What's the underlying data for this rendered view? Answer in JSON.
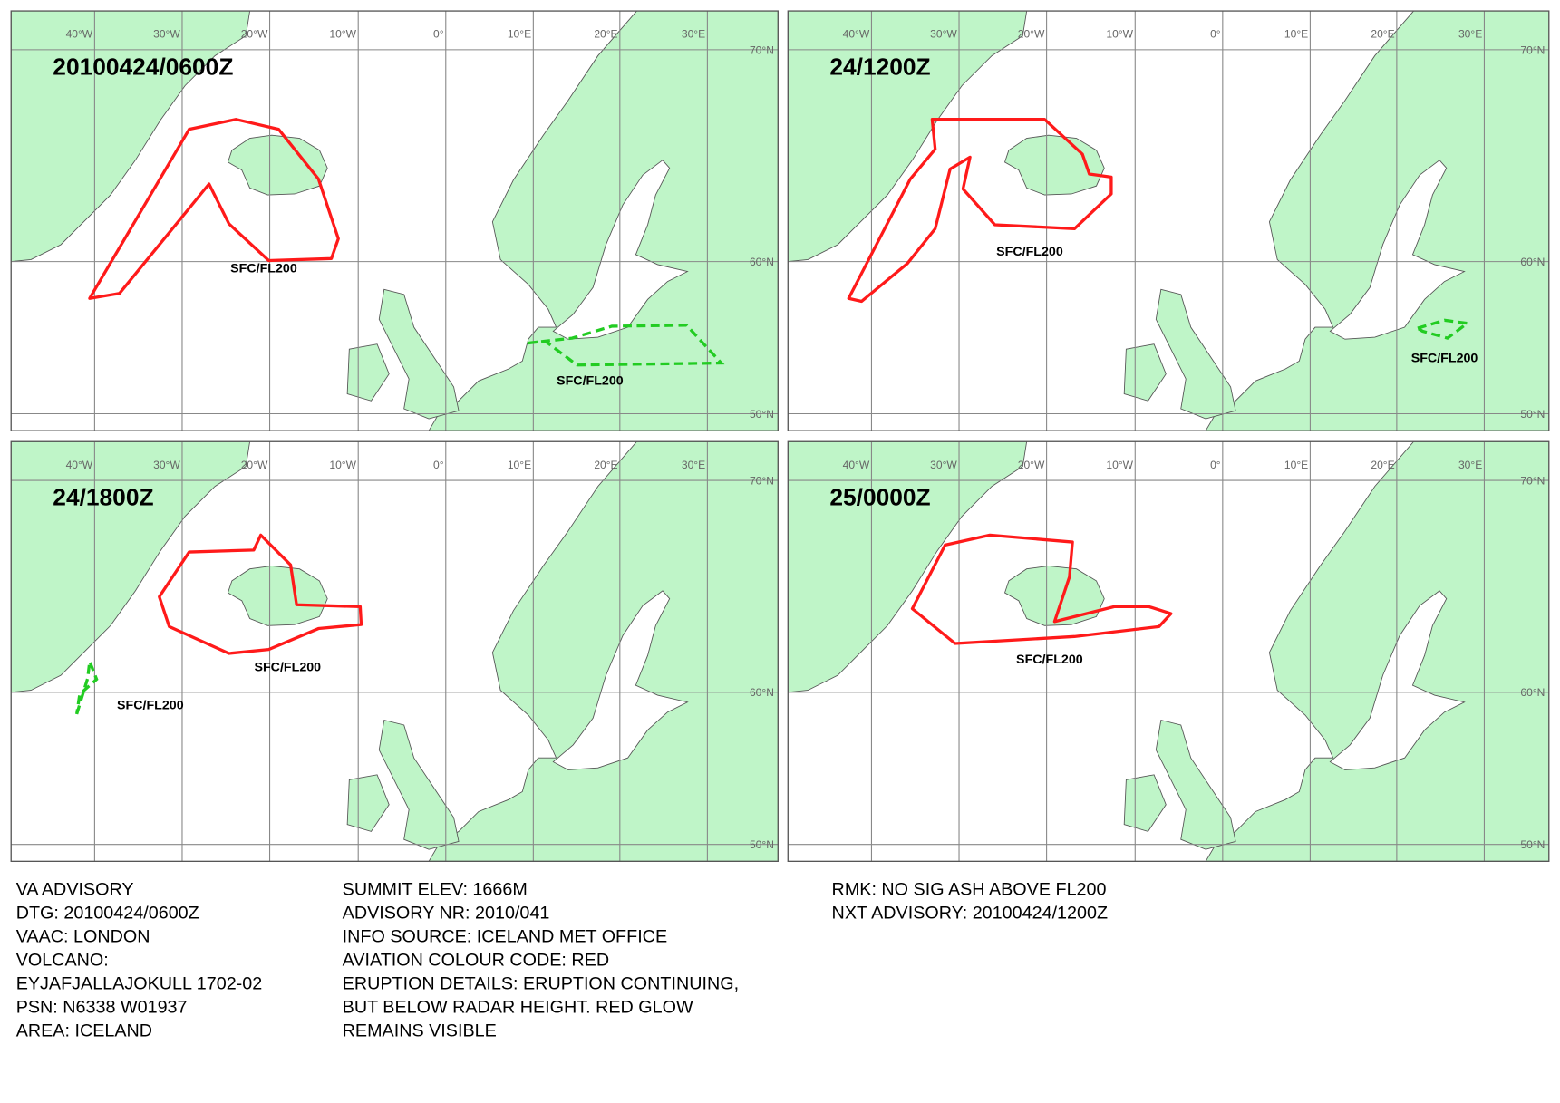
{
  "graticule": {
    "lon_labels": [
      "40°W",
      "30°W",
      "20°W",
      "10°W",
      "0°",
      "10°E",
      "20°E",
      "30°E"
    ],
    "lat_labels": [
      "70°N",
      "60°N",
      "50°N"
    ]
  },
  "panels": [
    {
      "time": "20100424/0600Z",
      "labels": [
        "SFC/FL200",
        "SFC/FL200"
      ]
    },
    {
      "time": "24/1200Z",
      "labels": [
        "SFC/FL200",
        "SFC/FL200"
      ]
    },
    {
      "time": "24/1800Z",
      "labels": [
        "SFC/FL200",
        "SFC/FL200"
      ]
    },
    {
      "time": "25/0000Z",
      "labels": [
        "SFC/FL200"
      ]
    }
  ],
  "advisory": {
    "column_1": [
      "VA ADVISORY",
      "DTG:  20100424/0600Z",
      "VAAC:  LONDON",
      "VOLCANO:",
      "EYJAFJALLAJOKULL 1702-02",
      "PSN:  N6338 W01937",
      "AREA:  ICELAND"
    ],
    "column_2": [
      "SUMMIT ELEV:  1666M",
      "ADVISORY NR:  2010/041",
      "INFO SOURCE:  ICELAND MET OFFICE",
      "AVIATION COLOUR CODE:  RED",
      "ERUPTION DETAILS:  ERUPTION CONTINUING,",
      "BUT BELOW RADAR HEIGHT. RED GLOW",
      "REMAINS VISIBLE"
    ],
    "column_3": [
      "RMK:  NO SIG ASH ABOVE FL200",
      "NXT ADVISORY:  20100424/1200Z"
    ]
  }
}
